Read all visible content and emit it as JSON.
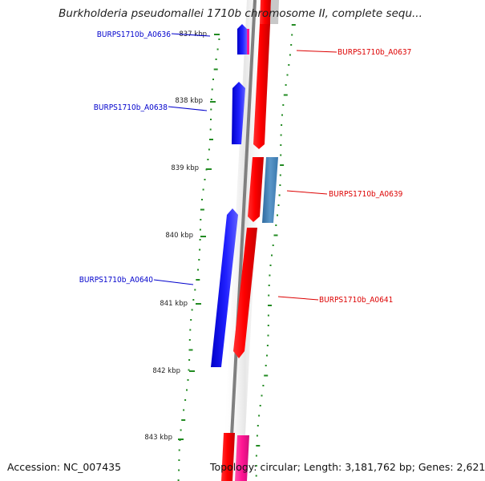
{
  "title": "Burkholderia pseudomallei 1710b chromosome II, complete sequ...",
  "footer": {
    "accession": "Accession: NC_007435",
    "stats": "Topology: circular; Length: 3,181,762 bp; Genes: 2,621"
  },
  "scale_labels": [
    "837 kbp",
    "838 kbp",
    "839 kbp",
    "840 kbp",
    "841 kbp",
    "842 kbp",
    "843 kbp"
  ],
  "genes": [
    {
      "id": "BURPS1710b_A0636",
      "strand": "reverse"
    },
    {
      "id": "BURPS1710b_A0637",
      "strand": "forward"
    },
    {
      "id": "BURPS1710b_A0638",
      "strand": "reverse"
    },
    {
      "id": "BURPS1710b_A0639",
      "strand": "forward"
    },
    {
      "id": "BURPS1710b_A0640",
      "strand": "reverse"
    },
    {
      "id": "BURPS1710b_A0641",
      "strand": "forward"
    }
  ],
  "colors": {
    "reverse_gene": "#0000ff",
    "forward_gene": "#ff0000",
    "reverse_label": "#0000cc",
    "forward_label": "#dd0000",
    "steelblue_feature": "#4682b4",
    "pink_feature": "#ff1493",
    "backbone": "#808080",
    "gc_ticks": "#228b22"
  }
}
